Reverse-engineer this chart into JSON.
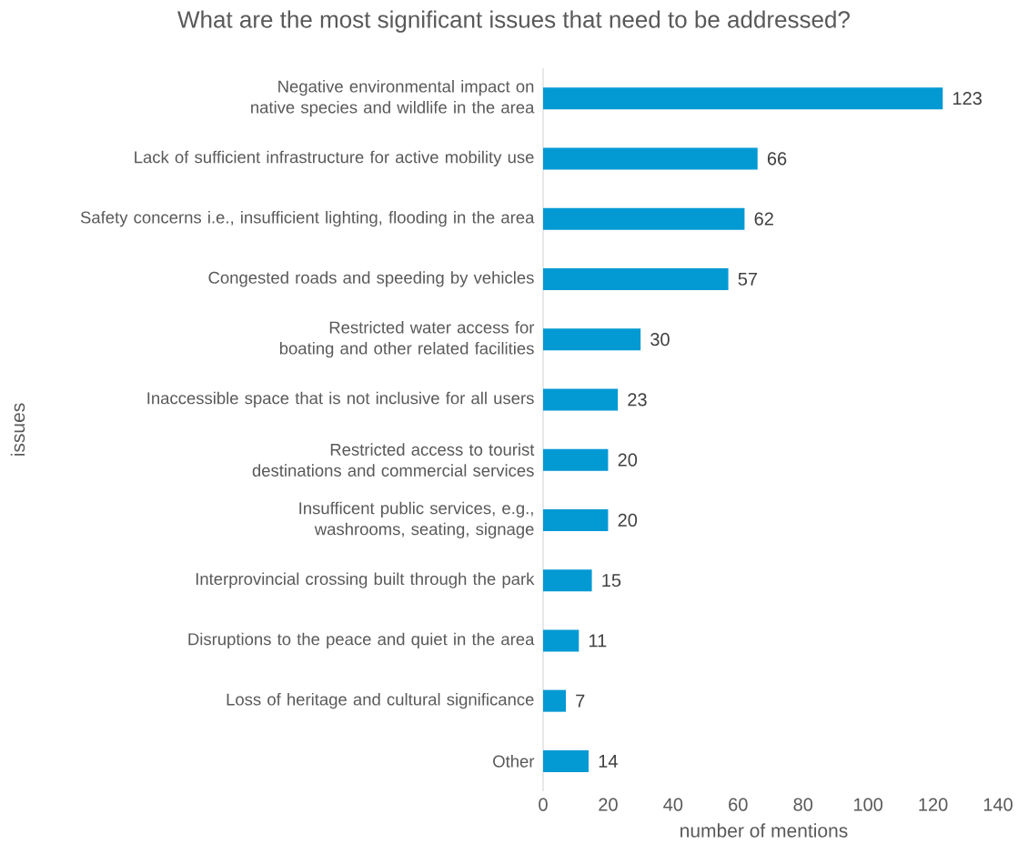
{
  "chart_data": {
    "type": "bar",
    "orientation": "horizontal",
    "title": "What are the most significant issues that need to be addressed?",
    "xlabel": "number of mentions",
    "ylabel": "issues",
    "categories": [
      "Negative environmental impact on native species and wildlife in the area",
      "Lack of sufficient infrastructure for active mobility use",
      "Safety concerns i.e.,  insufficient lighting, flooding in the area",
      "Congested roads and speeding by vehicles",
      "Restricted water access for boating and other related facilities",
      "Inaccessible space that is not inclusive for all users",
      "Restricted access to tourist destinations and commercial services",
      "Insufficent public services, e.g., washrooms, seating, signage",
      "Interprovincial crossing built through the park",
      "Disruptions to the peace and quiet in the area",
      "Loss of heritage and cultural significance",
      "Other"
    ],
    "values": [
      123,
      66,
      62,
      57,
      30,
      23,
      20,
      20,
      15,
      11,
      7,
      14
    ],
    "color": "#0399d3",
    "xlim": [
      0,
      140
    ],
    "xticks": [
      0,
      20,
      40,
      60,
      80,
      100,
      120,
      140
    ],
    "data_labels": true
  }
}
